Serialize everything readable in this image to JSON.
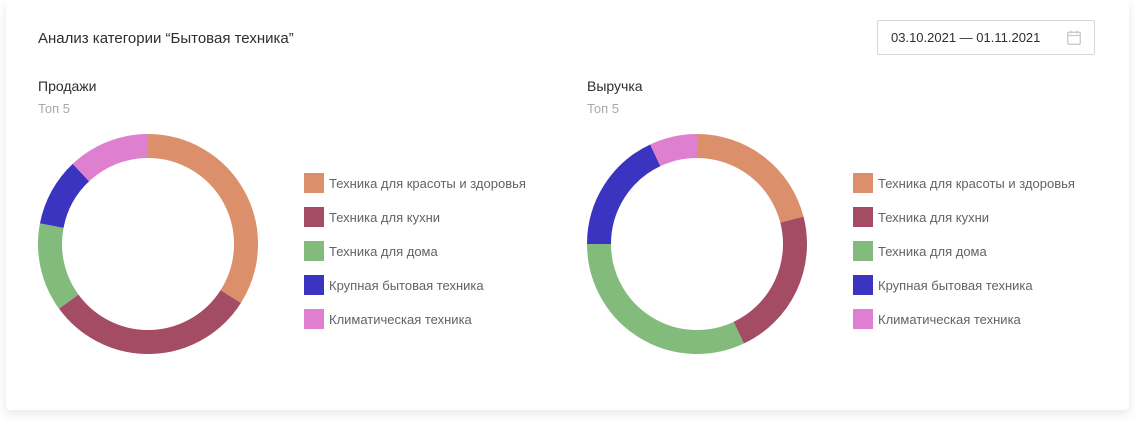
{
  "header": {
    "title": "Анализ категории “Бытовая техника”",
    "date_range": "03.10.2021 — 01.11.2021"
  },
  "chart_data": [
    {
      "type": "pie",
      "title": "Продажи",
      "subtitle": "Топ 5",
      "donut": true,
      "legend": "right",
      "categories": [
        "Техника для красоты и здоровья",
        "Техника для кухни",
        "Техника для дома",
        "Крупная бытовая техника",
        "Климатическая техника"
      ],
      "values": [
        34,
        31,
        13,
        10,
        12
      ],
      "colors": [
        "#dc8f6b",
        "#a34c64",
        "#82bb7b",
        "#3a34c0",
        "#df7fcf"
      ]
    },
    {
      "type": "pie",
      "title": "Выручка",
      "subtitle": "Топ 5",
      "donut": true,
      "legend": "right",
      "categories": [
        "Техника для красоты и здоровья",
        "Техника для кухни",
        "Техника для дома",
        "Крупная бытовая техника",
        "Климатическая техника"
      ],
      "values": [
        21,
        22,
        32,
        18,
        7
      ],
      "colors": [
        "#dc8f6b",
        "#a34c64",
        "#82bb7b",
        "#3a34c0",
        "#df7fcf"
      ]
    }
  ]
}
